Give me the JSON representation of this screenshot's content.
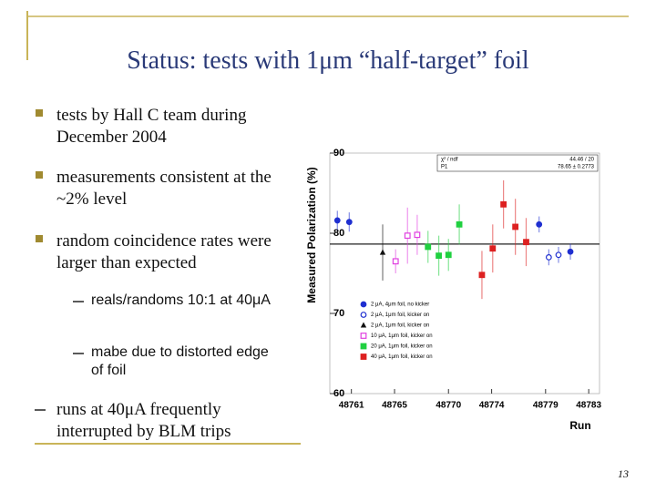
{
  "header": {
    "title": "Status: tests with 1μm “half-target” foil"
  },
  "bullets": [
    {
      "text": "tests by Hall C team during December 2004"
    },
    {
      "text": "measurements consistent at the ~2% level"
    },
    {
      "text": "random coincidence rates were larger than expected",
      "sub_bullets": [
        "reals/randoms 10:1 at 40μA",
        "mabe due to distorted edge of foil"
      ]
    }
  ],
  "dash_bullet": "runs at 40μA frequently interrupted by BLM trips",
  "page_number": "13",
  "chart_data": {
    "type": "scatter",
    "x_label": "Run",
    "y_label": "Measured Polarization (%)",
    "xlim": [
      48759,
      48784
    ],
    "xticks": [
      48761,
      48765,
      48770,
      48774,
      48779,
      48783
    ],
    "ylim": [
      60,
      90
    ],
    "yticks": [
      60,
      70,
      80,
      90
    ],
    "stats": [
      {
        "name": "χ² / ndf",
        "label": "44.46 / 20"
      },
      {
        "name": "P1",
        "value": 78.65,
        "label": "78.65 ± 0.2773"
      }
    ],
    "series": [
      {
        "name": "2 μA, 4μm foil, no kicker",
        "color": "#1f2fd0",
        "marker": "circle",
        "x": [
          48759.7,
          48760.8,
          48778.4,
          48781.3
        ],
        "values": [
          81.6,
          81.4,
          81.1,
          77.7
        ],
        "errors": [
          1.2,
          1.2,
          1.0,
          1.0
        ]
      },
      {
        "name": "2 μA, 1μm foil, kicker on",
        "color": "#1f2fd0",
        "marker": "circle-open",
        "x": [
          48779.3,
          48780.2
        ],
        "values": [
          77.0,
          77.3
        ],
        "errors": [
          1.0,
          1.0
        ]
      },
      {
        "name": "2 μA, 1μm foil, kicker on",
        "color": "#111111",
        "marker": "triangle",
        "x": [
          48763.9
        ],
        "values": [
          77.6
        ],
        "errors": [
          3.5
        ]
      },
      {
        "name": "10 μA, 1μm foil, kicker on",
        "color": "#e040e0",
        "marker": "square-open",
        "x": [
          48765.1,
          48766.2,
          48767.1
        ],
        "values": [
          76.5,
          79.7,
          79.8
        ],
        "errors": [
          1.5,
          3.5,
          2.5
        ]
      },
      {
        "name": "20 μA, 1μm foil, kicker on",
        "color": "#20d040",
        "marker": "square",
        "x": [
          48768.1,
          48769.1,
          48770.0,
          48771.0
        ],
        "values": [
          78.3,
          77.2,
          77.3,
          81.1
        ],
        "errors": [
          2.0,
          2.5,
          2.0,
          2.5
        ]
      },
      {
        "name": "40 μA, 1μm foil, kicker on",
        "color": "#dd2020",
        "marker": "square",
        "x": [
          48773.1,
          48774.1,
          48775.1,
          48776.2,
          48777.2
        ],
        "values": [
          74.8,
          78.1,
          83.6,
          80.8,
          78.9
        ],
        "errors": [
          3.0,
          3.0,
          3.0,
          3.5,
          3.0
        ]
      }
    ]
  }
}
